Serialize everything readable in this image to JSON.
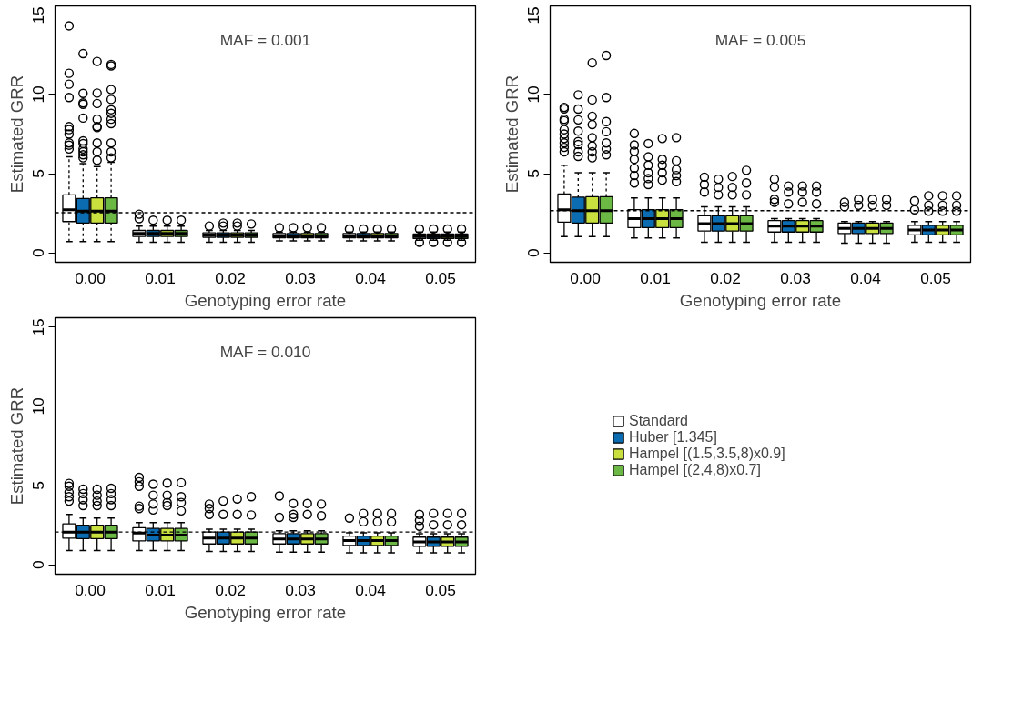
{
  "chart_data": [
    {
      "type": "box",
      "categories": [
        "0.00",
        "0.01",
        "0.02",
        "0.03",
        "0.04",
        "0.05"
      ],
      "xlabel": "Genotyping error rate",
      "ylabel": "Estimated GRR",
      "ylim": [
        -0.6,
        15.6
      ],
      "yticks": [
        0,
        5,
        10,
        15
      ],
      "annotations": [
        "MAF = 0.001"
      ],
      "ref_lines": [
        {
          "axis": "y",
          "value": 2.53,
          "line_style": "dashed"
        }
      ],
      "series": [
        {
          "color": "#ffffff",
          "boxes": [
            {
              "low": 0.71,
              "q1": 1.97,
              "median": 2.72,
              "q3": 3.66,
              "high": 6.06,
              "outliers": [
                14.34,
                11.34,
                10.65,
                9.81,
                7.97,
                7.78,
                7.5,
                6.94,
                6.8,
                6.56
              ]
            },
            {
              "low": 0.66,
              "q1": 1.03,
              "median": 1.22,
              "q3": 1.41,
              "high": 1.69,
              "outliers": [
                2.16,
                2.44
              ]
            },
            {
              "low": 0.66,
              "q1": 0.98,
              "median": 1.13,
              "q3": 1.26,
              "high": 1.41,
              "outliers": [
                1.69
              ]
            },
            {
              "low": 0.75,
              "q1": 0.94,
              "median": 1.07,
              "q3": 1.22,
              "high": 1.31,
              "outliers": [
                1.59
              ]
            },
            {
              "low": 0.75,
              "q1": 0.94,
              "median": 1.07,
              "q3": 1.22,
              "high": 1.31,
              "outliers": [
                1.5
              ]
            },
            {
              "low": 0.79,
              "q1": 0.9,
              "median": 1.03,
              "q3": 1.18,
              "high": 1.31,
              "outliers": [
                1.5,
                0.66
              ]
            }
          ]
        },
        {
          "color": "#0b6cb1",
          "boxes": [
            {
              "low": 0.71,
              "q1": 1.88,
              "median": 2.63,
              "q3": 3.43,
              "high": 5.63,
              "outliers": [
                12.58,
                10.07,
                9.47,
                9.38,
                8.51,
                7.07,
                6.9,
                6.56,
                6.38,
                6.19,
                6.0
              ]
            },
            {
              "low": 0.66,
              "q1": 1.03,
              "median": 1.22,
              "q3": 1.41,
              "high": 1.69,
              "outliers": [
                2.06
              ]
            },
            {
              "low": 0.66,
              "q1": 0.98,
              "median": 1.13,
              "q3": 1.26,
              "high": 1.41,
              "outliers": [
                1.69,
                1.88
              ]
            },
            {
              "low": 0.75,
              "q1": 0.94,
              "median": 1.07,
              "q3": 1.22,
              "high": 1.31,
              "outliers": [
                1.59
              ]
            },
            {
              "low": 0.75,
              "q1": 0.94,
              "median": 1.07,
              "q3": 1.22,
              "high": 1.31,
              "outliers": [
                1.5
              ]
            },
            {
              "low": 0.79,
              "q1": 0.9,
              "median": 1.03,
              "q3": 1.18,
              "high": 1.31,
              "outliers": [
                1.5,
                0.66
              ]
            }
          ]
        },
        {
          "color": "#c9e03e",
          "boxes": [
            {
              "low": 0.71,
              "q1": 1.88,
              "median": 2.63,
              "q3": 3.47,
              "high": 5.44,
              "outliers": [
                12.09,
                10.09,
                9.43,
                8.44,
                7.97,
                7.91,
                6.94,
                6.38,
                5.85
              ]
            },
            {
              "low": 0.66,
              "q1": 1.03,
              "median": 1.22,
              "q3": 1.41,
              "high": 1.69,
              "outliers": [
                2.06
              ]
            },
            {
              "low": 0.66,
              "q1": 0.98,
              "median": 1.13,
              "q3": 1.26,
              "high": 1.41,
              "outliers": [
                1.69,
                1.88
              ]
            },
            {
              "low": 0.75,
              "q1": 0.94,
              "median": 1.07,
              "q3": 1.22,
              "high": 1.31,
              "outliers": [
                1.59
              ]
            },
            {
              "low": 0.75,
              "q1": 0.94,
              "median": 1.07,
              "q3": 1.22,
              "high": 1.31,
              "outliers": [
                1.5
              ]
            },
            {
              "low": 0.79,
              "q1": 0.9,
              "median": 1.03,
              "q3": 1.18,
              "high": 1.31,
              "outliers": [
                1.5,
                0.66
              ]
            }
          ]
        },
        {
          "color": "#6cb845",
          "boxes": [
            {
              "low": 0.71,
              "q1": 1.88,
              "median": 2.63,
              "q3": 3.47,
              "high": 5.72,
              "outliers": [
                11.9,
                11.81,
                10.31,
                9.69,
                9.04,
                8.81,
                8.44,
                8.16,
                6.94,
                6.38,
                6.0
              ]
            },
            {
              "low": 0.66,
              "q1": 1.03,
              "median": 1.22,
              "q3": 1.41,
              "high": 1.69,
              "outliers": [
                2.06
              ]
            },
            {
              "low": 0.66,
              "q1": 0.98,
              "median": 1.13,
              "q3": 1.26,
              "high": 1.41,
              "outliers": [
                1.82
              ]
            },
            {
              "low": 0.75,
              "q1": 0.94,
              "median": 1.07,
              "q3": 1.22,
              "high": 1.31,
              "outliers": [
                1.59
              ]
            },
            {
              "low": 0.75,
              "q1": 0.94,
              "median": 1.07,
              "q3": 1.22,
              "high": 1.31,
              "outliers": [
                1.5
              ]
            },
            {
              "low": 0.79,
              "q1": 0.9,
              "median": 1.03,
              "q3": 1.18,
              "high": 1.31,
              "outliers": [
                1.5,
                0.66
              ]
            }
          ]
        }
      ]
    },
    {
      "type": "box",
      "categories": [
        "0.00",
        "0.01",
        "0.02",
        "0.03",
        "0.04",
        "0.05"
      ],
      "xlabel": "Genotyping error rate",
      "ylabel": "Estimated GRR",
      "ylim": [
        -0.6,
        15.6
      ],
      "yticks": [
        0,
        5,
        10,
        15
      ],
      "annotations": [
        "MAF = 0.005"
      ],
      "ref_lines": [
        {
          "axis": "y",
          "value": 2.66,
          "line_style": "dashed"
        }
      ],
      "series": [
        {
          "color": "#ffffff",
          "boxes": [
            {
              "low": 1.03,
              "q1": 1.93,
              "median": 2.72,
              "q3": 3.71,
              "high": 5.53,
              "outliers": [
                9.19,
                9.09,
                8.44,
                8.34,
                7.78,
                7.5,
                7.22,
                6.94,
                6.66,
                6.38
              ]
            },
            {
              "low": 0.94,
              "q1": 1.59,
              "median": 2.16,
              "q3": 2.72,
              "high": 3.47,
              "outliers": [
                7.54,
                6.81,
                6.41,
                5.91,
                5.34,
                4.88,
                4.41
              ]
            },
            {
              "low": 0.66,
              "q1": 1.37,
              "median": 1.84,
              "q3": 2.34,
              "high": 2.91,
              "outliers": [
                4.78,
                4.31,
                3.84
              ]
            },
            {
              "low": 0.66,
              "q1": 1.31,
              "median": 1.69,
              "q3": 2.03,
              "high": 2.16,
              "outliers": [
                4.65,
                4.16,
                3.38,
                3.19
              ]
            },
            {
              "low": 0.6,
              "q1": 1.22,
              "median": 1.54,
              "q3": 1.88,
              "high": 1.97,
              "outliers": [
                3.19,
                2.91
              ]
            },
            {
              "low": 0.66,
              "q1": 1.13,
              "median": 1.44,
              "q3": 1.73,
              "high": 1.97,
              "outliers": [
                3.28,
                2.72
              ]
            }
          ]
        },
        {
          "color": "#0b6cb1",
          "boxes": [
            {
              "low": 1.03,
              "q1": 1.88,
              "median": 2.66,
              "q3": 3.51,
              "high": 5.06,
              "outliers": [
                9.98,
                9.08,
                8.4,
                7.69,
                7.03,
                6.84,
                6.38,
                6.09
              ]
            },
            {
              "low": 0.94,
              "q1": 1.59,
              "median": 2.16,
              "q3": 2.72,
              "high": 3.47,
              "outliers": [
                6.9,
                6.06,
                5.53,
                5.06,
                4.69,
                4.31
              ]
            },
            {
              "low": 0.66,
              "q1": 1.37,
              "median": 1.84,
              "q3": 2.34,
              "high": 2.91,
              "outliers": [
                4.65,
                4.13,
                3.66
              ]
            },
            {
              "low": 0.66,
              "q1": 1.31,
              "median": 1.69,
              "q3": 2.03,
              "high": 2.16,
              "outliers": [
                4.22,
                3.84,
                3.09
              ]
            },
            {
              "low": 0.6,
              "q1": 1.22,
              "median": 1.54,
              "q3": 1.88,
              "high": 1.97,
              "outliers": [
                3.38,
                3.0
              ]
            },
            {
              "low": 0.66,
              "q1": 1.13,
              "median": 1.44,
              "q3": 1.73,
              "high": 1.97,
              "outliers": [
                3.6,
                3.0,
                2.63
              ]
            }
          ]
        },
        {
          "color": "#c9e03e",
          "boxes": [
            {
              "low": 1.03,
              "q1": 1.88,
              "median": 2.66,
              "q3": 3.54,
              "high": 5.06,
              "outliers": [
                12.0,
                9.66,
                8.63,
                8.1,
                7.28,
                6.75,
                6.38,
                6.0
              ]
            },
            {
              "low": 0.94,
              "q1": 1.59,
              "median": 2.16,
              "q3": 2.72,
              "high": 3.47,
              "outliers": [
                7.22,
                5.91,
                5.53,
                5.06,
                4.59
              ]
            },
            {
              "low": 0.66,
              "q1": 1.37,
              "median": 1.84,
              "q3": 2.34,
              "high": 2.91,
              "outliers": [
                4.82,
                4.13,
                3.66
              ]
            },
            {
              "low": 0.66,
              "q1": 1.31,
              "median": 1.69,
              "q3": 2.03,
              "high": 2.16,
              "outliers": [
                4.22,
                3.84,
                3.19
              ]
            },
            {
              "low": 0.6,
              "q1": 1.22,
              "median": 1.54,
              "q3": 1.88,
              "high": 1.97,
              "outliers": [
                3.38,
                3.0
              ]
            },
            {
              "low": 0.66,
              "q1": 1.13,
              "median": 1.44,
              "q3": 1.73,
              "high": 1.97,
              "outliers": [
                3.6,
                3.0,
                2.63
              ]
            }
          ]
        },
        {
          "color": "#6cb845",
          "boxes": [
            {
              "low": 1.03,
              "q1": 1.88,
              "median": 2.66,
              "q3": 3.54,
              "high": 5.06,
              "outliers": [
                12.47,
                9.81,
                8.29,
                7.65,
                6.94,
                6.56,
                6.19
              ]
            },
            {
              "low": 0.94,
              "q1": 1.59,
              "median": 2.16,
              "q3": 2.72,
              "high": 3.47,
              "outliers": [
                7.28,
                5.81,
                5.25,
                4.88,
                4.5
              ]
            },
            {
              "low": 0.66,
              "q1": 1.37,
              "median": 1.84,
              "q3": 2.34,
              "high": 2.91,
              "outliers": [
                5.21,
                4.41,
                3.66
              ]
            },
            {
              "low": 0.66,
              "q1": 1.31,
              "median": 1.69,
              "q3": 2.03,
              "high": 2.16,
              "outliers": [
                4.22,
                3.84,
                3.09
              ]
            },
            {
              "low": 0.6,
              "q1": 1.22,
              "median": 1.54,
              "q3": 1.88,
              "high": 1.97,
              "outliers": [
                3.38,
                3.0
              ]
            },
            {
              "low": 0.66,
              "q1": 1.13,
              "median": 1.44,
              "q3": 1.73,
              "high": 1.97,
              "outliers": [
                3.6,
                3.0,
                2.63
              ]
            }
          ]
        }
      ]
    },
    {
      "type": "box",
      "categories": [
        "0.00",
        "0.01",
        "0.02",
        "0.03",
        "0.04",
        "0.05"
      ],
      "xlabel": "Genotyping error rate",
      "ylabel": "Estimated GRR",
      "ylim": [
        -0.6,
        15.6
      ],
      "yticks": [
        0,
        5,
        10,
        15
      ],
      "annotations": [
        "MAF = 0.010"
      ],
      "legend": "right",
      "ref_lines": [
        {
          "axis": "y",
          "value": 2.06,
          "line_style": "dashed"
        }
      ],
      "series": [
        {
          "name": "Standard",
          "color": "#ffffff",
          "boxes": [
            {
              "low": 0.9,
              "q1": 1.68,
              "median": 2.06,
              "q3": 2.58,
              "high": 3.18,
              "outliers": [
                5.14,
                4.96,
                4.58,
                4.3,
                4.02
              ]
            },
            {
              "low": 0.9,
              "q1": 1.5,
              "median": 2.0,
              "q3": 2.34,
              "high": 2.66,
              "outliers": [
                5.52,
                5.24,
                4.96,
                3.7,
                3.55
              ]
            },
            {
              "low": 0.84,
              "q1": 1.31,
              "median": 1.68,
              "q3": 2.06,
              "high": 2.24,
              "outliers": [
                3.83,
                3.55,
                3.18
              ]
            },
            {
              "low": 0.79,
              "q1": 1.31,
              "median": 1.63,
              "q3": 1.96,
              "high": 2.15,
              "outliers": [
                4.34,
                2.99
              ]
            },
            {
              "low": 0.75,
              "q1": 1.22,
              "median": 1.53,
              "q3": 1.81,
              "high": 2.02,
              "outliers": [
                2.95
              ]
            },
            {
              "low": 0.75,
              "q1": 1.16,
              "median": 1.44,
              "q3": 1.74,
              "high": 1.96,
              "outliers": [
                3.18,
                2.8,
                2.43
              ]
            }
          ]
        },
        {
          "name": "Huber [1.345]",
          "color": "#0b6cb1",
          "boxes": [
            {
              "low": 0.9,
              "q1": 1.65,
              "median": 2.06,
              "q3": 2.49,
              "high": 2.95,
              "outliers": [
                4.77,
                4.49,
                4.11,
                3.74
              ]
            },
            {
              "low": 0.9,
              "q1": 1.5,
              "median": 1.87,
              "q3": 2.29,
              "high": 2.66,
              "outliers": [
                5.09,
                4.39,
                3.83,
                3.46
              ]
            },
            {
              "low": 0.84,
              "q1": 1.31,
              "median": 1.68,
              "q3": 2.06,
              "high": 2.24,
              "outliers": [
                4.02,
                3.18
              ]
            },
            {
              "low": 0.79,
              "q1": 1.31,
              "median": 1.63,
              "q3": 1.96,
              "high": 2.15,
              "outliers": [
                3.87,
                3.18,
                2.99
              ]
            },
            {
              "low": 0.75,
              "q1": 1.22,
              "median": 1.53,
              "q3": 1.81,
              "high": 2.02,
              "outliers": [
                3.24,
                2.71
              ]
            },
            {
              "low": 0.75,
              "q1": 1.16,
              "median": 1.44,
              "q3": 1.74,
              "high": 1.96,
              "outliers": [
                3.24,
                2.52
              ]
            }
          ]
        },
        {
          "name": "Hampel [(1.5,3.5,8)x0.9]",
          "color": "#c9e03e",
          "boxes": [
            {
              "low": 0.9,
              "q1": 1.65,
              "median": 2.06,
              "q3": 2.49,
              "high": 2.95,
              "outliers": [
                4.77,
                4.39,
                4.02,
                3.74
              ]
            },
            {
              "low": 0.9,
              "q1": 1.5,
              "median": 1.87,
              "q3": 2.29,
              "high": 2.66,
              "outliers": [
                5.16,
                4.39,
                3.93,
                3.74
              ]
            },
            {
              "low": 0.84,
              "q1": 1.31,
              "median": 1.68,
              "q3": 2.06,
              "high": 2.24,
              "outliers": [
                4.15,
                3.18
              ]
            },
            {
              "low": 0.79,
              "q1": 1.31,
              "median": 1.63,
              "q3": 1.96,
              "high": 2.15,
              "outliers": [
                3.87,
                3.18
              ]
            },
            {
              "low": 0.75,
              "q1": 1.22,
              "median": 1.53,
              "q3": 1.81,
              "high": 2.02,
              "outliers": [
                3.24,
                2.71
              ]
            },
            {
              "low": 0.75,
              "q1": 1.16,
              "median": 1.44,
              "q3": 1.74,
              "high": 1.96,
              "outliers": [
                3.24,
                2.52
              ]
            }
          ]
        },
        {
          "name": "Hampel [(2,4,8)x0.7]",
          "color": "#6cb845",
          "boxes": [
            {
              "low": 0.9,
              "q1": 1.65,
              "median": 2.06,
              "q3": 2.49,
              "high": 2.95,
              "outliers": [
                4.83,
                4.49,
                4.11,
                3.74
              ]
            },
            {
              "low": 0.9,
              "q1": 1.5,
              "median": 1.87,
              "q3": 2.29,
              "high": 2.66,
              "outliers": [
                5.18,
                4.3,
                3.93,
                3.4
              ]
            },
            {
              "low": 0.84,
              "q1": 1.31,
              "median": 1.68,
              "q3": 2.06,
              "high": 2.24,
              "outliers": [
                4.3,
                3.14
              ]
            },
            {
              "low": 0.79,
              "q1": 1.31,
              "median": 1.63,
              "q3": 1.96,
              "high": 2.15,
              "outliers": [
                3.83,
                3.09
              ]
            },
            {
              "low": 0.75,
              "q1": 1.22,
              "median": 1.53,
              "q3": 1.81,
              "high": 2.02,
              "outliers": [
                3.24,
                2.71
              ]
            },
            {
              "low": 0.75,
              "q1": 1.16,
              "median": 1.44,
              "q3": 1.74,
              "high": 1.96,
              "outliers": [
                3.24,
                2.52
              ]
            }
          ]
        }
      ]
    }
  ]
}
